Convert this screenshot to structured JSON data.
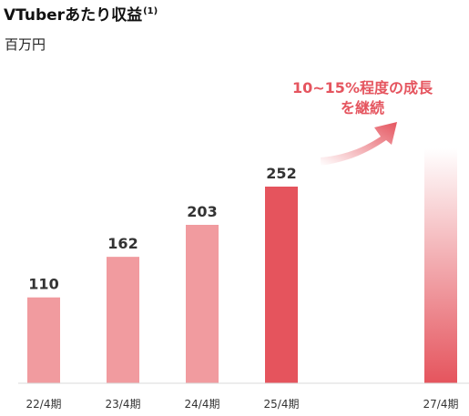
{
  "title": "VTuberあたり収益",
  "title_note": "(1)",
  "unit": "百万円",
  "callout": {
    "line1": "10~15%程度の成長",
    "line2": "を継続"
  },
  "colors": {
    "historic_bar": "#f19b9f",
    "latest_bar": "#e5545d",
    "projection_top": "#ffffff",
    "projection_bottom": "#e5545d",
    "callout": "#e5555f"
  },
  "chart_data": {
    "type": "bar",
    "categories": [
      "22/4期",
      "23/4期",
      "24/4期",
      "25/4期",
      "27/4期"
    ],
    "values": [
      110,
      162,
      203,
      252,
      null
    ],
    "ylabel": "百万円",
    "ylim": [
      0,
      300
    ],
    "grid": false,
    "legend": "none",
    "projection_category": "27/4期"
  }
}
